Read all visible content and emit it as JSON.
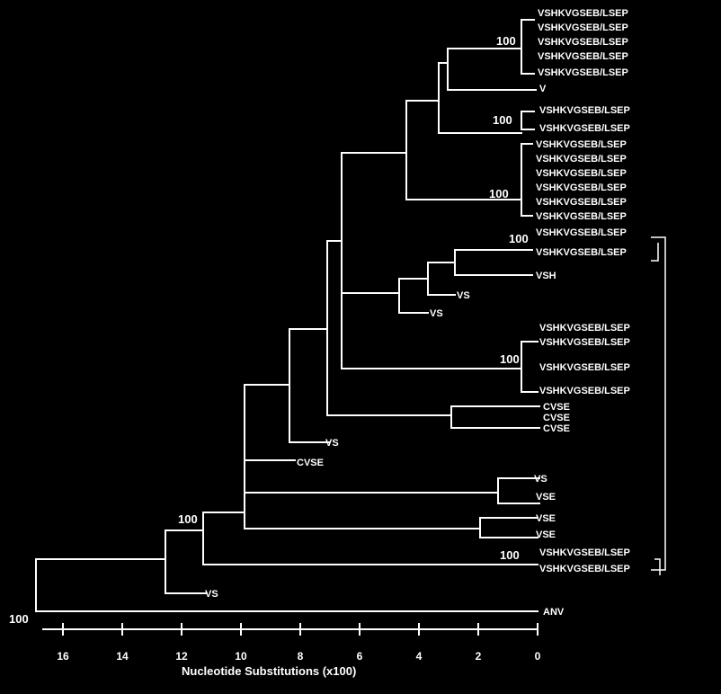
{
  "root_label": "100",
  "outgroup_label": "ANV",
  "axis": {
    "ticks": [
      "16",
      "14",
      "12",
      "10",
      "8",
      "6",
      "4",
      "2",
      "0"
    ],
    "label": "Nucleotide Substitutions (x100)"
  },
  "bootstrap": {
    "clade_a": "100",
    "clade_b": "100",
    "clade_c": "100",
    "clade_d": "100",
    "clade_e": "100",
    "clade_f": "100",
    "basal": "100"
  },
  "taxa": {
    "t01": "VSHKVGSEB/LSEP",
    "t02": "VSHKVGSEB/LSEP",
    "t03": "VSHKVGSEB/LSEP",
    "t04": "VSHKVGSEB/LSEP",
    "t05": "VSHKVGSEB/LSEP",
    "t06": "V",
    "t07": "VSHKVGSEB/LSEP",
    "t08": "VSHKVGSEB/LSEP",
    "t09": "VSHKVGSEB/LSEP",
    "t10": "VSHKVGSEB/LSEP",
    "t11": "VSHKVGSEB/LSEP",
    "t12": "VSHKVGSEB/LSEP",
    "t13": "VSHKVGSEB/LSEP",
    "t14": "VSHKVGSEB/LSEP",
    "t15": "VSHKVGSEB/LSEP",
    "t16": "VSHKVGSEB/LSEP",
    "t17": "VSH",
    "t18": "VS",
    "t19": "VS",
    "t20": "VSHKVGSEB/LSEP",
    "t21": "VSHKVGSEB/LSEP",
    "t22": "VSHKVGSEB/LSEP",
    "t23": "VSHKVGSEB/LSEP",
    "t24": "CVSE",
    "t25": "CVSE",
    "t26": "CVSE",
    "t27": "VS",
    "t28": "CVSE",
    "t29": "VS",
    "t30": "VSE",
    "t31": "VSE",
    "t32": "VSE",
    "t33": "VSHKVGSEB/LSEP",
    "t34": "VSHKVGSEB/LSEP",
    "t35": "VS"
  }
}
